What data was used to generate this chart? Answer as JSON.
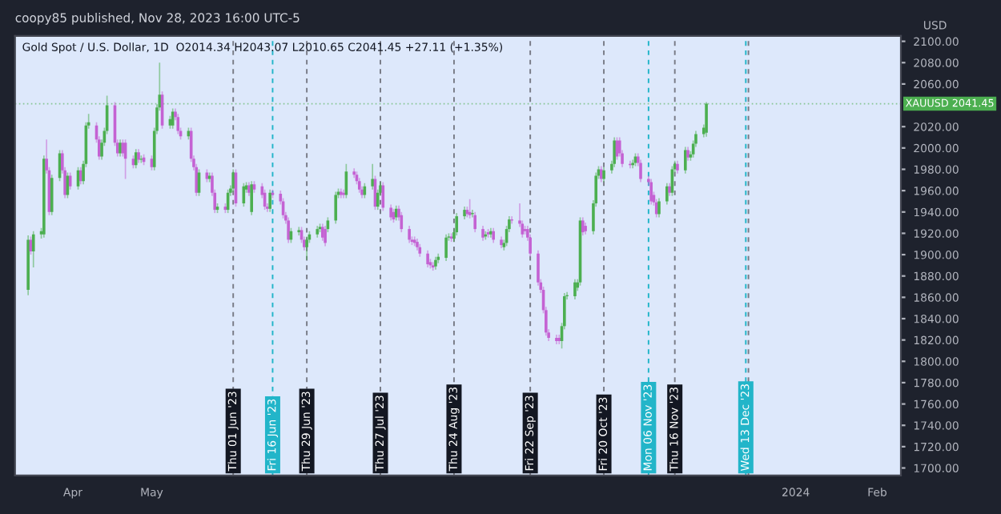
{
  "chart_data": {
    "type": "candlestick",
    "title": "Gold Spot / U.S. Dollar, 1D  O2014.34 H2043.07 L2010.65 C2041.45 +27.11 (+1.35%)",
    "subtitle": "coopy85 published, Nov 28, 2023 16:00 UTC-5",
    "ylabel": "USD",
    "colors": [
      "#4caf50",
      "#c462d3",
      "#4caf50",
      "#4caf50",
      "#4caf50",
      "#c462d3",
      "#c462d3",
      "#4caf50",
      "#4caf50",
      "#c462d3",
      "#c462d3",
      "#4caf50",
      "#c462d3",
      "#4caf50",
      "#c462d3",
      "#4caf50",
      "#4caf50",
      "#4caf50",
      "#c462d3",
      "#c462d3",
      "#4caf50",
      "#4caf50",
      "#4caf50",
      "#c462d3",
      "#c462d3",
      "#4caf50",
      "#c462d3",
      "#c462d3",
      "#c462d3",
      "#4caf50",
      "#c462d3",
      "#4caf50",
      "#c462d3",
      "#c462d3",
      "#4caf50",
      "#4caf50",
      "#4caf50",
      "#c462d3",
      "#4caf50",
      "#4caf50",
      "#c462d3",
      "#c462d3",
      "#c462d3",
      "#4caf50",
      "#c462d3",
      "#c462d3",
      "#c462d3",
      "#4caf50",
      "#c462d3",
      "#4caf50",
      "#c462d3",
      "#c462d3",
      "#4caf50",
      "#c462d3",
      "#4caf50",
      "#4caf50",
      "#4caf50",
      "#c462d3",
      "#4caf50",
      "#4caf50",
      "#c462d3",
      "#4caf50",
      "#c462d3",
      "#c462d3",
      "#c462d3",
      "#c462d3",
      "#4caf50",
      "#c462d3",
      "#c462d3",
      "#c462d3",
      "#c462d3",
      "#c462d3",
      "#4caf50",
      "#4caf50",
      "#c462d3",
      "#c462d3",
      "#4caf50",
      "#4caf50",
      "#4caf50",
      "#4caf50",
      "#c462d3",
      "#c462d3",
      "#4caf50",
      "#4caf50",
      "#4caf50",
      "#c462d3",
      "#c462d3",
      "#4caf50",
      "#c462d3",
      "#c462d3",
      "#c462d3",
      "#c462d3",
      "#4caf50",
      "#4caf50",
      "#c462d3",
      "#4caf50",
      "#4caf50",
      "#c462d3",
      "#c462d3",
      "#c462d3",
      "#4caf50",
      "#c462d3",
      "#c462d3",
      "#c462d3",
      "#c462d3",
      "#c462d3",
      "#c462d3",
      "#c462d3",
      "#c462d3",
      "#c462d3",
      "#c462d3",
      "#4caf50",
      "#4caf50",
      "#4caf50",
      "#4caf50",
      "#c462d3",
      "#4caf50",
      "#4caf50",
      "#4caf50",
      "#c462d3",
      "#c462d3",
      "#4caf50",
      "#c462d3",
      "#c462d3",
      "#4caf50",
      "#c462d3",
      "#4caf50",
      "#c462d3",
      "#c462d3",
      "#4caf50",
      "#4caf50",
      "#4caf50",
      "#c462d3",
      "#c462d3",
      "#c462d3",
      "#c462d3",
      "#c462d3",
      "#c462d3",
      "#c462d3",
      "#c462d3",
      "#c462d3",
      "#c462d3",
      "#c462d3",
      "#c462d3",
      "#c462d3",
      "#4caf50",
      "#4caf50",
      "#4caf50",
      "#4caf50",
      "#4caf50",
      "#4caf50",
      "#c462d3",
      "#c462d3",
      "#4caf50",
      "#4caf50",
      "#4caf50",
      "#c462d3",
      "#4caf50",
      "#4caf50",
      "#4caf50",
      "#c462d3",
      "#c462d3",
      "#c462d3",
      "#c462d3",
      "#4caf50",
      "#4caf50",
      "#c462d3",
      "#c462d3",
      "#c462d3",
      "#c462d3",
      "#c462d3",
      "#c462d3",
      "#4caf50",
      "#4caf50",
      "#c462d3",
      "#4caf50",
      "#4caf50",
      "#c462d3",
      "#4caf50",
      "#c462d3",
      "#4caf50",
      "#4caf50",
      "#4caf50",
      "#4caf50",
      "#4caf50"
    ],
    "x": [
      "2023-03-15",
      "2023-03-16",
      "2023-03-17",
      "2023-03-20",
      "2023-03-21",
      "2023-03-22",
      "2023-03-23",
      "2023-03-24",
      "2023-03-27",
      "2023-03-28",
      "2023-03-29",
      "2023-03-30",
      "2023-03-31",
      "2023-04-03",
      "2023-04-04",
      "2023-04-05",
      "2023-04-06",
      "2023-04-07",
      "2023-04-10",
      "2023-04-11",
      "2023-04-12",
      "2023-04-13",
      "2023-04-14",
      "2023-04-17",
      "2023-04-18",
      "2023-04-19",
      "2023-04-20",
      "2023-04-21",
      "2023-04-24",
      "2023-04-25",
      "2023-04-26",
      "2023-04-27",
      "2023-04-28",
      "2023-05-01",
      "2023-05-02",
      "2023-05-03",
      "2023-05-04",
      "2023-05-05",
      "2023-05-08",
      "2023-05-09",
      "2023-05-10",
      "2023-05-11",
      "2023-05-12",
      "2023-05-15",
      "2023-05-16",
      "2023-05-17",
      "2023-05-18",
      "2023-05-19",
      "2023-05-22",
      "2023-05-23",
      "2023-05-24",
      "2023-05-25",
      "2023-05-26",
      "2023-05-29",
      "2023-05-30",
      "2023-05-31",
      "2023-06-01",
      "2023-06-02",
      "2023-06-05",
      "2023-06-06",
      "2023-06-07",
      "2023-06-08",
      "2023-06-09",
      "2023-06-12",
      "2023-06-13",
      "2023-06-14",
      "2023-06-15",
      "2023-06-16",
      "2023-06-19",
      "2023-06-20",
      "2023-06-21",
      "2023-06-22",
      "2023-06-23",
      "2023-06-26",
      "2023-06-27",
      "2023-06-28",
      "2023-06-29",
      "2023-06-30",
      "2023-07-03",
      "2023-07-04",
      "2023-07-05",
      "2023-07-06",
      "2023-07-07",
      "2023-07-10",
      "2023-07-11",
      "2023-07-12",
      "2023-07-13",
      "2023-07-14",
      "2023-07-17",
      "2023-07-18",
      "2023-07-19",
      "2023-07-20",
      "2023-07-21",
      "2023-07-24",
      "2023-07-25",
      "2023-07-26",
      "2023-07-27",
      "2023-07-28",
      "2023-07-31",
      "2023-08-01",
      "2023-08-02",
      "2023-08-03",
      "2023-08-04",
      "2023-08-07",
      "2023-08-08",
      "2023-08-09",
      "2023-08-10",
      "2023-08-11",
      "2023-08-14",
      "2023-08-15",
      "2023-08-16",
      "2023-08-17",
      "2023-08-18",
      "2023-08-21",
      "2023-08-22",
      "2023-08-23",
      "2023-08-24",
      "2023-08-25",
      "2023-08-28",
      "2023-08-29",
      "2023-08-30",
      "2023-08-31",
      "2023-09-01",
      "2023-09-04",
      "2023-09-05",
      "2023-09-06",
      "2023-09-07",
      "2023-09-08",
      "2023-09-11",
      "2023-09-12",
      "2023-09-13",
      "2023-09-14",
      "2023-09-15",
      "2023-09-18",
      "2023-09-19",
      "2023-09-20",
      "2023-09-21",
      "2023-09-22",
      "2023-09-25",
      "2023-09-26",
      "2023-09-27",
      "2023-09-28",
      "2023-09-29",
      "2023-10-02",
      "2023-10-03",
      "2023-10-04",
      "2023-10-05",
      "2023-10-06",
      "2023-10-09",
      "2023-10-10",
      "2023-10-11",
      "2023-10-12",
      "2023-10-13",
      "2023-10-16",
      "2023-10-17",
      "2023-10-18",
      "2023-10-19",
      "2023-10-20",
      "2023-10-23",
      "2023-10-24",
      "2023-10-25",
      "2023-10-26",
      "2023-10-27",
      "2023-10-30",
      "2023-10-31",
      "2023-11-01",
      "2023-11-02",
      "2023-11-03",
      "2023-11-06",
      "2023-11-07",
      "2023-11-08",
      "2023-11-09",
      "2023-11-10",
      "2023-11-13",
      "2023-11-14",
      "2023-11-15",
      "2023-11-16",
      "2023-11-17",
      "2023-11-20",
      "2023-11-21",
      "2023-11-22",
      "2023-11-23",
      "2023-11-24",
      "2023-11-27",
      "2023-11-28"
    ],
    "ohlc": [
      [
        1867,
        1918,
        1862,
        1914
      ],
      [
        1914,
        1917,
        1900,
        1903
      ],
      [
        1903,
        1922,
        1888,
        1919
      ],
      [
        1919,
        1925,
        1915,
        1922
      ],
      [
        1919,
        1993,
        1916,
        1990
      ],
      [
        1990,
        2008,
        1976,
        1979
      ],
      [
        1979,
        1982,
        1937,
        1940
      ],
      [
        1940,
        1975,
        1937,
        1972
      ],
      [
        1972,
        1998,
        1969,
        1995
      ],
      [
        1995,
        1998,
        1976,
        1979
      ],
      [
        1979,
        1982,
        1953,
        1956
      ],
      [
        1956,
        1977,
        1953,
        1974
      ],
      [
        1974,
        1977,
        1961,
        1964
      ],
      [
        1964,
        1982,
        1961,
        1979
      ],
      [
        1979,
        1982,
        1966,
        1969
      ],
      [
        1969,
        1988,
        1966,
        1985
      ],
      [
        1985,
        2024,
        1982,
        2021
      ],
      [
        2021,
        2032,
        2018,
        2024
      ],
      [
        2021,
        2024,
        2005,
        2008
      ],
      [
        2008,
        2011,
        1989,
        1992
      ],
      [
        1992,
        2008,
        1989,
        2005
      ],
      [
        2005,
        2019,
        2002,
        2016
      ],
      [
        2016,
        2049,
        2013,
        2040
      ],
      [
        2040,
        2043,
        2002,
        2005
      ],
      [
        2005,
        2008,
        1992,
        1995
      ],
      [
        1995,
        2008,
        1992,
        2005
      ],
      [
        2005,
        2008,
        1992,
        1995
      ],
      [
        2005,
        2008,
        1971,
        1990
      ],
      [
        1990,
        1993,
        1981,
        1984
      ],
      [
        1984,
        1999,
        1981,
        1996
      ],
      [
        1996,
        1999,
        1986,
        1989
      ],
      [
        1989,
        1993,
        1986,
        1990
      ],
      [
        1991,
        1994,
        1984,
        1987
      ],
      [
        1990,
        1993,
        1979,
        1982
      ],
      [
        1982,
        2019,
        1979,
        2016
      ],
      [
        2016,
        2041,
        2013,
        2038
      ],
      [
        2038,
        2080,
        2035,
        2050
      ],
      [
        2050,
        2053,
        2018,
        2021
      ],
      [
        2021,
        2030,
        2018,
        2027
      ],
      [
        2021,
        2037,
        2018,
        2034
      ],
      [
        2034,
        2037,
        2026,
        2029
      ],
      [
        2029,
        2032,
        2013,
        2016
      ],
      [
        2016,
        2019,
        2008,
        2011
      ],
      [
        2011,
        2019,
        2008,
        2016
      ],
      [
        2016,
        2019,
        1987,
        1990
      ],
      [
        1990,
        1993,
        1979,
        1982
      ],
      [
        1982,
        1985,
        1955,
        1958
      ],
      [
        1958,
        1980,
        1955,
        1977
      ],
      [
        1977,
        1980,
        1968,
        1971
      ],
      [
        1971,
        1977,
        1968,
        1974
      ],
      [
        1974,
        1977,
        1955,
        1958
      ],
      [
        1958,
        1961,
        1939,
        1942
      ],
      [
        1942,
        1948,
        1939,
        1945
      ],
      [
        1945,
        1948,
        1939,
        1942
      ],
      [
        1942,
        1961,
        1939,
        1958
      ],
      [
        1958,
        1965,
        1955,
        1962
      ],
      [
        1962,
        1980,
        1959,
        1977
      ],
      [
        1977,
        1980,
        1945,
        1948
      ],
      [
        1948,
        1967,
        1945,
        1964
      ],
      [
        1961,
        1968,
        1958,
        1965
      ],
      [
        1965,
        1968,
        1955,
        1958
      ],
      [
        1940,
        1969,
        1937,
        1966
      ],
      [
        1966,
        1969,
        1958,
        1961
      ],
      [
        1964,
        1967,
        1953,
        1956
      ],
      [
        1958,
        1961,
        1942,
        1945
      ],
      [
        1945,
        1948,
        1940,
        1943
      ],
      [
        1943,
        1961,
        1940,
        1958
      ],
      [
        1958,
        1961,
        1953,
        1956
      ],
      [
        1957,
        1960,
        1947,
        1950
      ],
      [
        1950,
        1953,
        1934,
        1937
      ],
      [
        1937,
        1940,
        1929,
        1932
      ],
      [
        1932,
        1935,
        1911,
        1914
      ],
      [
        1914,
        1925,
        1911,
        1922
      ],
      [
        1921,
        1926,
        1918,
        1923
      ],
      [
        1923,
        1926,
        1911,
        1914
      ],
      [
        1914,
        1917,
        1904,
        1907
      ],
      [
        1907,
        1917,
        1895,
        1914
      ],
      [
        1914,
        1922,
        1911,
        1919
      ],
      [
        1919,
        1927,
        1916,
        1924
      ],
      [
        1924,
        1929,
        1921,
        1926
      ],
      [
        1926,
        1929,
        1913,
        1916
      ],
      [
        1924,
        1927,
        1908,
        1911
      ],
      [
        1924,
        1935,
        1921,
        1932
      ],
      [
        1932,
        1959,
        1929,
        1956
      ],
      [
        1956,
        1962,
        1953,
        1959
      ],
      [
        1959,
        1962,
        1953,
        1956
      ],
      [
        1958,
        1961,
        1953,
        1956
      ],
      [
        1956,
        1985,
        1953,
        1978
      ],
      [
        1978,
        1981,
        1972,
        1975
      ],
      [
        1975,
        1978,
        1966,
        1969
      ],
      [
        1969,
        1972,
        1958,
        1961
      ],
      [
        1961,
        1964,
        1953,
        1956
      ],
      [
        1956,
        1967,
        1953,
        1964
      ],
      [
        1964,
        1985,
        1961,
        1971
      ],
      [
        1971,
        1974,
        1942,
        1945
      ],
      [
        1945,
        1961,
        1942,
        1958
      ],
      [
        1958,
        1968,
        1955,
        1965
      ],
      [
        1965,
        1968,
        1941,
        1944
      ],
      [
        1944,
        1947,
        1932,
        1935
      ],
      [
        1940,
        1943,
        1930,
        1933
      ],
      [
        1935,
        1946,
        1932,
        1943
      ],
      [
        1943,
        1946,
        1932,
        1935
      ],
      [
        1937,
        1940,
        1921,
        1924
      ],
      [
        1924,
        1927,
        1911,
        1914
      ],
      [
        1914,
        1917,
        1909,
        1912
      ],
      [
        1914,
        1917,
        1908,
        1911
      ],
      [
        1912,
        1915,
        1904,
        1907
      ],
      [
        1907,
        1910,
        1898,
        1901
      ],
      [
        1901,
        1904,
        1888,
        1891
      ],
      [
        1893,
        1896,
        1887,
        1890
      ],
      [
        1890,
        1893,
        1885,
        1888
      ],
      [
        1889,
        1898,
        1886,
        1895
      ],
      [
        1895,
        1901,
        1892,
        1898
      ],
      [
        1897,
        1919,
        1894,
        1916
      ],
      [
        1916,
        1920,
        1913,
        1917
      ],
      [
        1917,
        1920,
        1912,
        1915
      ],
      [
        1915,
        1924,
        1912,
        1921
      ],
      [
        1921,
        1939,
        1918,
        1936
      ],
      [
        1936,
        1945,
        1933,
        1942
      ],
      [
        1942,
        1945,
        1935,
        1938
      ],
      [
        1940,
        1952,
        1934,
        1937
      ],
      [
        1938,
        1942,
        1935,
        1939
      ],
      [
        1937,
        1940,
        1921,
        1924
      ],
      [
        1924,
        1927,
        1913,
        1916
      ],
      [
        1917,
        1922,
        1914,
        1919
      ],
      [
        1921,
        1924,
        1916,
        1919
      ],
      [
        1919,
        1925,
        1916,
        1922
      ],
      [
        1922,
        1925,
        1911,
        1914
      ],
      [
        1914,
        1917,
        1906,
        1909
      ],
      [
        1907,
        1914,
        1904,
        1911
      ],
      [
        1911,
        1927,
        1908,
        1924
      ],
      [
        1924,
        1936,
        1921,
        1933
      ],
      [
        1933,
        1936,
        1929,
        1932
      ],
      [
        1932,
        1948,
        1926,
        1929
      ],
      [
        1929,
        1932,
        1916,
        1919
      ],
      [
        1924,
        1927,
        1919,
        1922
      ],
      [
        1924,
        1927,
        1913,
        1916
      ],
      [
        1916,
        1919,
        1898,
        1901
      ],
      [
        1901,
        1904,
        1871,
        1874
      ],
      [
        1874,
        1877,
        1864,
        1867
      ],
      [
        1867,
        1870,
        1845,
        1848
      ],
      [
        1848,
        1851,
        1824,
        1827
      ],
      [
        1827,
        1830,
        1819,
        1822
      ],
      [
        1822,
        1825,
        1816,
        1819
      ],
      [
        1822,
        1825,
        1816,
        1819
      ],
      [
        1819,
        1836,
        1812,
        1833
      ],
      [
        1833,
        1864,
        1830,
        1861
      ],
      [
        1861,
        1865,
        1858,
        1862
      ],
      [
        1861,
        1877,
        1858,
        1874
      ],
      [
        1869,
        1877,
        1866,
        1874
      ],
      [
        1874,
        1935,
        1871,
        1932
      ],
      [
        1932,
        1935,
        1918,
        1921
      ],
      [
        1927,
        1930,
        1919,
        1922
      ],
      [
        1922,
        1951,
        1919,
        1948
      ],
      [
        1948,
        1977,
        1945,
        1974
      ],
      [
        1974,
        1983,
        1971,
        1980
      ],
      [
        1980,
        1983,
        1968,
        1971
      ],
      [
        1971,
        1982,
        1968,
        1979
      ],
      [
        1979,
        1988,
        1976,
        1985
      ],
      [
        1985,
        2010,
        1982,
        2007
      ],
      [
        2007,
        2010,
        1989,
        1992
      ],
      [
        2007,
        2010,
        1992,
        1995
      ],
      [
        1995,
        1998,
        1982,
        1985
      ],
      [
        1985,
        1988,
        1981,
        1984
      ],
      [
        1984,
        1989,
        1981,
        1986
      ],
      [
        1986,
        1995,
        1983,
        1992
      ],
      [
        1992,
        1995,
        1983,
        1986
      ],
      [
        1986,
        1989,
        1968,
        1971
      ],
      [
        1971,
        1974,
        1965,
        1968
      ],
      [
        1968,
        1971,
        1947,
        1950
      ],
      [
        1956,
        1959,
        1946,
        1949
      ],
      [
        1949,
        1952,
        1935,
        1938
      ],
      [
        1938,
        1953,
        1935,
        1950
      ],
      [
        1950,
        1967,
        1947,
        1964
      ],
      [
        1964,
        1967,
        1955,
        1958
      ],
      [
        1958,
        1983,
        1955,
        1980
      ],
      [
        1980,
        1988,
        1977,
        1985
      ],
      [
        1985,
        1988,
        1976,
        1979
      ],
      [
        1979,
        2001,
        1976,
        1998
      ],
      [
        1998,
        2001,
        1988,
        1991
      ],
      [
        1991,
        1997,
        1988,
        1994
      ],
      [
        1994,
        2007,
        1991,
        2004
      ],
      [
        2004,
        2016,
        2001,
        2013
      ],
      [
        2013,
        2022,
        2010,
        2019
      ],
      [
        2014.34,
        2043.07,
        2010.65,
        2041.45
      ]
    ],
    "xlim": [
      "2023-03-10",
      "2024-02-10"
    ],
    "xticks": [
      {
        "value": "2023-04-01",
        "label": "Apr"
      },
      {
        "value": "2023-05-01",
        "label": "May"
      },
      {
        "value": "2024-01-01",
        "label": "2024"
      },
      {
        "value": "2024-02-01",
        "label": "Feb"
      }
    ],
    "ylim": [
      1693,
      2105
    ],
    "yticks": [
      {
        "value": 1700,
        "label": "1700.00"
      },
      {
        "value": 1720,
        "label": "1720.00"
      },
      {
        "value": 1740,
        "label": "1740.00"
      },
      {
        "value": 1760,
        "label": "1760.00"
      },
      {
        "value": 1780,
        "label": "1780.00"
      },
      {
        "value": 1800,
        "label": "1800.00"
      },
      {
        "value": 1820,
        "label": "1820.00"
      },
      {
        "value": 1840,
        "label": "1840.00"
      },
      {
        "value": 1860,
        "label": "1860.00"
      },
      {
        "value": 1880,
        "label": "1880.00"
      },
      {
        "value": 1900,
        "label": "1900.00"
      },
      {
        "value": 1920,
        "label": "1920.00"
      },
      {
        "value": 1940,
        "label": "1940.00"
      },
      {
        "value": 1960,
        "label": "1960.00"
      },
      {
        "value": 1980,
        "label": "1980.00"
      },
      {
        "value": 2000,
        "label": "2000.00"
      },
      {
        "value": 2020,
        "label": "2020.00"
      },
      {
        "value": 2060,
        "label": "2060.00"
      },
      {
        "value": 2080,
        "label": "2080.00"
      },
      {
        "value": 2100,
        "label": "2100.00"
      }
    ],
    "ref_lines": [
      {
        "axis": "y",
        "value": 2041.45,
        "label": "XAUUSD 2041.45",
        "color": "#4caf50",
        "line_style": "dotted"
      },
      {
        "axis": "x",
        "value": "2023-06-01",
        "label": "Thu 01 Jun '23",
        "color": "#787b86",
        "line_style": "dashed"
      },
      {
        "axis": "x",
        "value": "2023-06-16",
        "label": "Fri 16 Jun '23",
        "color": "#22b5c9",
        "line_style": "dashed"
      },
      {
        "axis": "x",
        "value": "2023-06-29",
        "label": "Thu 29 Jun '23",
        "color": "#787b86",
        "line_style": "dashed"
      },
      {
        "axis": "x",
        "value": "2023-07-27",
        "label": "Thu 27 Jul '23",
        "color": "#787b86",
        "line_style": "dashed"
      },
      {
        "axis": "x",
        "value": "2023-08-24",
        "label": "Thu 24 Aug '23",
        "color": "#787b86",
        "line_style": "dashed"
      },
      {
        "axis": "x",
        "value": "2023-09-22",
        "label": "Fri 22 Sep '23",
        "color": "#787b86",
        "line_style": "dashed"
      },
      {
        "axis": "x",
        "value": "2023-10-20",
        "label": "Fri 20 Oct '23",
        "color": "#787b86",
        "line_style": "dashed"
      },
      {
        "axis": "x",
        "value": "2023-11-06",
        "label": "Mon 06 Nov '23",
        "color": "#22b5c9",
        "line_style": "dashed"
      },
      {
        "axis": "x",
        "value": "2023-11-16",
        "label": "Thu 16 Nov '23",
        "color": "#787b86",
        "line_style": "dashed"
      },
      {
        "axis": "x",
        "value": "2023-12-13",
        "label": "Wed 13 Dec '23",
        "color": "#22b5c9",
        "line_style": "dashed"
      },
      {
        "axis": "x",
        "value": "2023-12-14",
        "label": null,
        "color": "#787b86",
        "line_style": "dashed"
      }
    ],
    "grid": false,
    "legend": false
  }
}
